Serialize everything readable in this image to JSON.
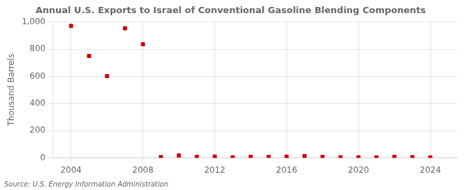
{
  "chart_data": {
    "type": "scatter",
    "title": "Annual U.S. Exports to Israel of Conventional Gasoline Blending Components",
    "ylabel": "Thousand Barrels",
    "annotations": [
      "Source: U.S. Energy Information Administration"
    ],
    "x": [
      2004,
      2005,
      2006,
      2007,
      2008,
      2009,
      2010,
      2011,
      2012,
      2013,
      2014,
      2015,
      2016,
      2017,
      2018,
      2019,
      2020,
      2021,
      2022,
      2023,
      2024
    ],
    "values": [
      970,
      749,
      601,
      952,
      835,
      6,
      18,
      8,
      10,
      5,
      8,
      7,
      9,
      14,
      8,
      5,
      5,
      4,
      8,
      6,
      4
    ],
    "color": "#cc0000",
    "marker": "square",
    "xlim": [
      2003.0,
      2025.5
    ],
    "xticks": [
      2004,
      2008,
      2012,
      2016,
      2020,
      2024
    ],
    "ylim": [
      0,
      1000
    ],
    "yticks": [
      0,
      200,
      400,
      600,
      800,
      {
        "value": 1000,
        "label": "1,000"
      }
    ],
    "grid": true
  }
}
